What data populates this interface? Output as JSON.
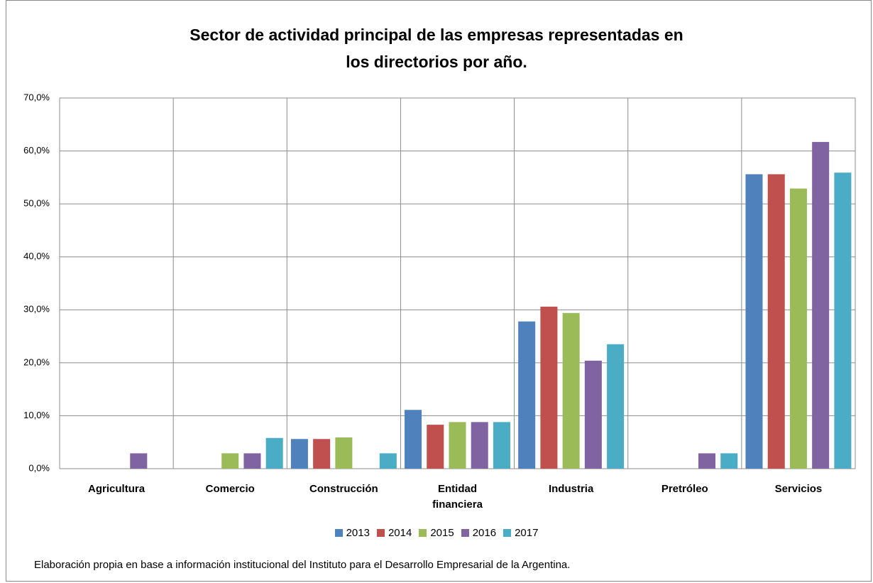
{
  "chart_data": {
    "type": "bar",
    "title": "Sector de actividad principal de las empresas representadas en los directorios por año.",
    "categories": [
      "Agricultura",
      "Comercio",
      "Construcción",
      "Entidad financiera",
      "Industria",
      "Pretróleo",
      "Servicios"
    ],
    "series": [
      {
        "name": "2013",
        "color": "#4f81bd",
        "values": [
          0,
          0,
          5.6,
          11.1,
          27.8,
          0,
          55.6
        ]
      },
      {
        "name": "2014",
        "color": "#c0504d",
        "values": [
          0,
          0,
          5.6,
          8.3,
          30.6,
          0,
          55.6
        ]
      },
      {
        "name": "2015",
        "color": "#9bbb59",
        "values": [
          0,
          2.9,
          5.9,
          8.8,
          29.4,
          0,
          52.9
        ]
      },
      {
        "name": "2016",
        "color": "#8064a2",
        "values": [
          2.9,
          2.9,
          0,
          8.8,
          20.4,
          2.9,
          61.7
        ]
      },
      {
        "name": "2017",
        "color": "#4bacc6",
        "values": [
          0,
          5.8,
          2.9,
          8.8,
          23.5,
          2.9,
          55.9
        ]
      }
    ],
    "ylim": [
      0,
      70
    ],
    "yticks": [
      {
        "value": 0,
        "label": "0,0%"
      },
      {
        "value": 10,
        "label": "10,0%"
      },
      {
        "value": 20,
        "label": "20,0%"
      },
      {
        "value": 30,
        "label": "30,0%"
      },
      {
        "value": 40,
        "label": "40,0%"
      },
      {
        "value": 50,
        "label": "50,0%"
      },
      {
        "value": 60,
        "label": "60,0%"
      },
      {
        "value": 70,
        "label": "70,0%"
      }
    ],
    "grid": true,
    "legend": "bottom",
    "note": "Elaboración propia en base a información institucional del Instituto para el Desarrollo Empresarial de la Argentina."
  }
}
